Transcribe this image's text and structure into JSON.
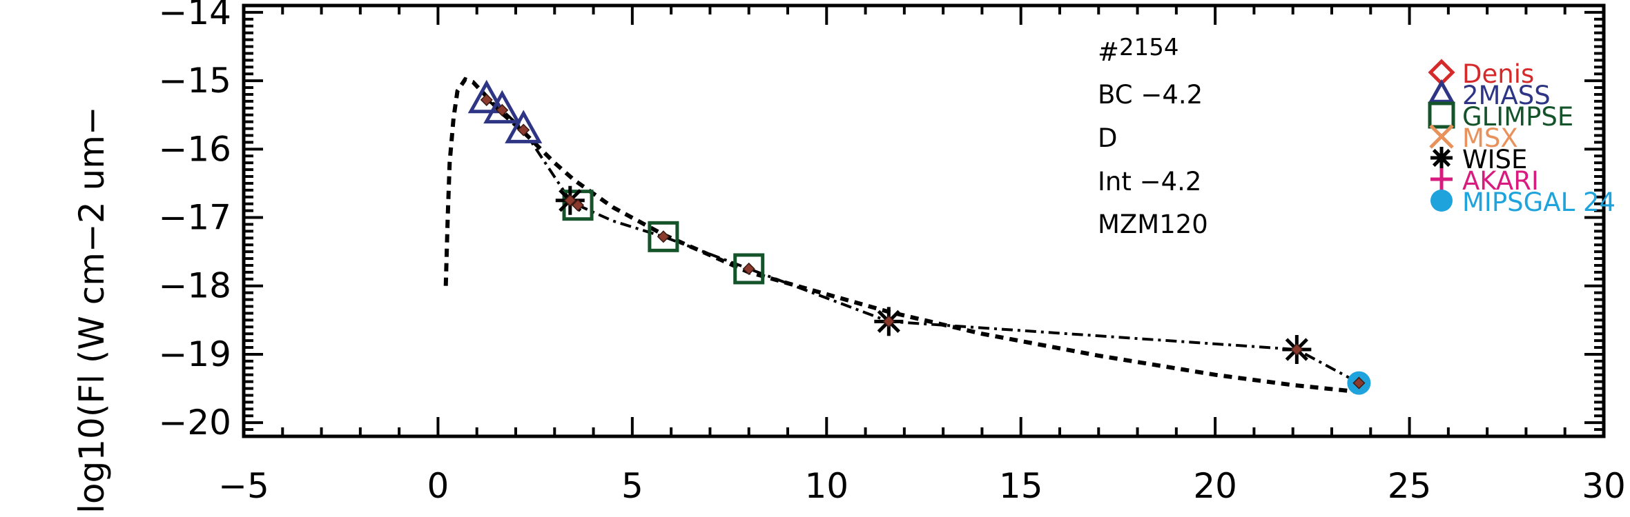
{
  "chart_data": {
    "type": "line",
    "title": "",
    "xlabel": "",
    "ylabel": "log10(Fl (W cm−2 um−",
    "xlim": [
      -5,
      30
    ],
    "ylim": [
      -20.2,
      -13.9
    ],
    "x_ticks": [
      -5,
      0,
      5,
      10,
      15,
      20,
      25,
      30
    ],
    "y_ticks": [
      -20,
      -19,
      -18,
      -17,
      -16,
      -15,
      -14
    ],
    "x_tick_labels": [
      "−5",
      "0",
      "5",
      "10",
      "15",
      "20",
      "25",
      "30"
    ],
    "y_tick_labels": [
      "−20",
      "−19",
      "−18",
      "−17",
      "−16",
      "−15",
      "−14"
    ],
    "annotations": {
      "id_hash": "#",
      "id_number": "2154",
      "bc": "BC −4.2",
      "class": "D",
      "int": "Int −4.2",
      "model": "MZM120"
    },
    "model_curve": {
      "x": [
        0.2,
        0.25,
        0.3,
        0.4,
        0.5,
        0.7,
        0.9,
        1.2,
        1.6,
        2.2,
        3.0,
        3.5,
        4.5,
        5.8,
        8.0,
        11.6,
        14,
        17,
        20,
        22,
        23.7
      ],
      "y": [
        -18.0,
        -17.0,
        -16.2,
        -15.55,
        -15.15,
        -14.98,
        -15.02,
        -15.2,
        -15.45,
        -15.75,
        -16.2,
        -16.45,
        -16.85,
        -17.25,
        -17.8,
        -18.38,
        -18.7,
        -19.02,
        -19.3,
        -19.45,
        -19.55
      ]
    },
    "observed_line": {
      "x": [
        1.25,
        1.65,
        2.2,
        3.4,
        3.6,
        4.5,
        5.8,
        8.0,
        11.6,
        22.1,
        23.7
      ],
      "y": [
        -15.28,
        -15.43,
        -15.72,
        -16.75,
        -16.82,
        -17.05,
        -17.28,
        -17.75,
        -18.52,
        -18.93,
        -19.42
      ]
    },
    "inner_points": {
      "x": [
        1.25,
        1.65,
        2.2,
        3.4,
        3.6,
        5.8,
        8.0,
        11.6,
        22.1,
        23.7
      ],
      "y": [
        -15.28,
        -15.43,
        -15.72,
        -16.75,
        -16.82,
        -17.28,
        -17.75,
        -18.52,
        -18.93,
        -19.42
      ]
    },
    "series": [
      {
        "name": "Denis",
        "color": "#d62a2a",
        "marker": "diamond",
        "x": [],
        "y": []
      },
      {
        "name": "2MASS",
        "color": "#2e3585",
        "marker": "triangle",
        "x": [
          1.25,
          1.65,
          2.2
        ],
        "y": [
          -15.28,
          -15.43,
          -15.72
        ]
      },
      {
        "name": "GLIMPSE",
        "color": "#15532a",
        "marker": "square",
        "x": [
          3.6,
          5.8,
          8.0
        ],
        "y": [
          -16.82,
          -17.28,
          -17.75
        ]
      },
      {
        "name": "MSX",
        "color": "#e8915a",
        "marker": "x",
        "x": [],
        "y": []
      },
      {
        "name": "WISE",
        "color": "#000000",
        "marker": "asterisk",
        "x": [
          3.4,
          11.6,
          22.1
        ],
        "y": [
          -16.75,
          -18.52,
          -18.93
        ]
      },
      {
        "name": "AKARI",
        "color": "#d81b7e",
        "marker": "plus",
        "x": [],
        "y": []
      },
      {
        "name": "MIPSGAL 24",
        "color": "#1fa3dc",
        "marker": "circle",
        "x": [
          23.7
        ],
        "y": [
          -19.42
        ]
      }
    ],
    "colors": {
      "axis": "#000000",
      "inner_point": "#8b3a2e",
      "model": "#000000"
    }
  }
}
